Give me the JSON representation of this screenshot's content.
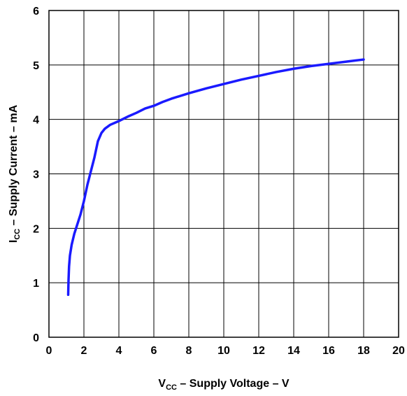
{
  "chart_data": {
    "type": "line",
    "title": "",
    "xlabel": {
      "symbol": "V",
      "subscript": "CC",
      "text": " – Supply Voltage – V"
    },
    "ylabel": {
      "symbol": "I",
      "subscript": "CC",
      "text": " – Supply Current – mA"
    },
    "xlim": [
      0,
      20
    ],
    "ylim": [
      0,
      6
    ],
    "x_ticks": [
      "0",
      "2",
      "4",
      "6",
      "8",
      "10",
      "12",
      "14",
      "16",
      "18",
      "20"
    ],
    "y_ticks": [
      "0",
      "1",
      "2",
      "3",
      "4",
      "5",
      "6"
    ],
    "grid": true,
    "line_color": "#1a1aff",
    "series": [
      {
        "x": [
          1.1,
          1.12,
          1.15,
          1.2,
          1.3,
          1.45,
          1.6,
          1.8,
          2.0,
          2.2,
          2.4,
          2.6,
          2.8,
          3.0,
          3.2,
          3.5,
          4.0,
          4.5,
          5.0,
          5.5,
          6.0,
          6.5,
          7.0,
          8.0,
          9.0,
          10.0,
          11.0,
          12.0,
          13.0,
          14.0,
          15.0,
          16.0,
          17.0,
          18.0
        ],
        "y": [
          0.78,
          1.05,
          1.3,
          1.5,
          1.7,
          1.9,
          2.05,
          2.25,
          2.5,
          2.8,
          3.05,
          3.3,
          3.6,
          3.75,
          3.83,
          3.9,
          3.97,
          4.05,
          4.12,
          4.2,
          4.25,
          4.32,
          4.38,
          4.48,
          4.57,
          4.65,
          4.73,
          4.8,
          4.87,
          4.93,
          4.98,
          5.02,
          5.06,
          5.1
        ]
      }
    ]
  }
}
